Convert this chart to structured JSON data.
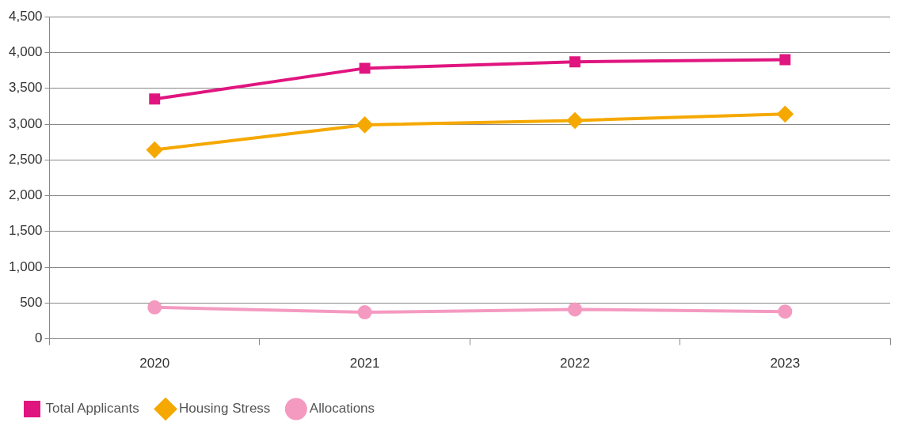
{
  "chart_data": {
    "type": "line",
    "categories": [
      "2020",
      "2021",
      "2022",
      "2023"
    ],
    "series": [
      {
        "name": "Total Applicants",
        "color": "#e0157f",
        "marker": "square",
        "values": [
          3350,
          3780,
          3870,
          3900
        ]
      },
      {
        "name": "Housing Stress",
        "color": "#f5a800",
        "marker": "diamond",
        "values": [
          2640,
          2990,
          3050,
          3140
        ]
      },
      {
        "name": "Allocations",
        "color": "#f49ac1",
        "marker": "circle",
        "values": [
          440,
          370,
          410,
          380
        ]
      }
    ],
    "ylim": [
      0,
      4500
    ],
    "yticks": [
      {
        "value": 0,
        "label": "0"
      },
      {
        "value": 500,
        "label": "500"
      },
      {
        "value": 1000,
        "label": "1,000"
      },
      {
        "value": 1500,
        "label": "1,500"
      },
      {
        "value": 2000,
        "label": "2,000"
      },
      {
        "value": 2500,
        "label": "2,500"
      },
      {
        "value": 3000,
        "label": "3,000"
      },
      {
        "value": 3500,
        "label": "3,500"
      },
      {
        "value": 4000,
        "label": "4,000"
      },
      {
        "value": 4500,
        "label": "4,500"
      }
    ],
    "grid": "y",
    "legend": "bottom left",
    "line_style": "solid"
  }
}
